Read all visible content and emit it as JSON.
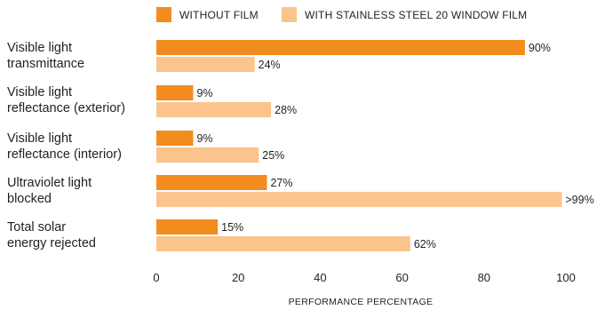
{
  "chart_data": {
    "type": "bar",
    "orientation": "horizontal",
    "categories": [
      "Visible light\ntransmittance",
      "Visible light\nreflectance (exterior)",
      "Visible light\nreflectance (interior)",
      "Ultraviolet light\nblocked",
      "Total solar\nenergy rejected"
    ],
    "series": [
      {
        "name": "WITHOUT FILM",
        "color": "#f28c1f",
        "values": [
          90,
          9,
          9,
          27,
          15
        ],
        "labels": [
          "90%",
          "9%",
          "9%",
          "27%",
          "15%"
        ]
      },
      {
        "name": "WITH STAINLESS STEEL 20 WINDOW FILM",
        "color": "#fac48c",
        "values": [
          24,
          28,
          25,
          99,
          62
        ],
        "labels": [
          "24%",
          "28%",
          "25%",
          ">99%",
          "62%"
        ]
      }
    ],
    "xlim": [
      0,
      100
    ],
    "xticks": [
      "0",
      "20",
      "40",
      "60",
      "80",
      "100"
    ],
    "xlabel": "PERFORMANCE PERCENTAGE",
    "ylabel": "",
    "grid": false,
    "legend_position": "top"
  }
}
